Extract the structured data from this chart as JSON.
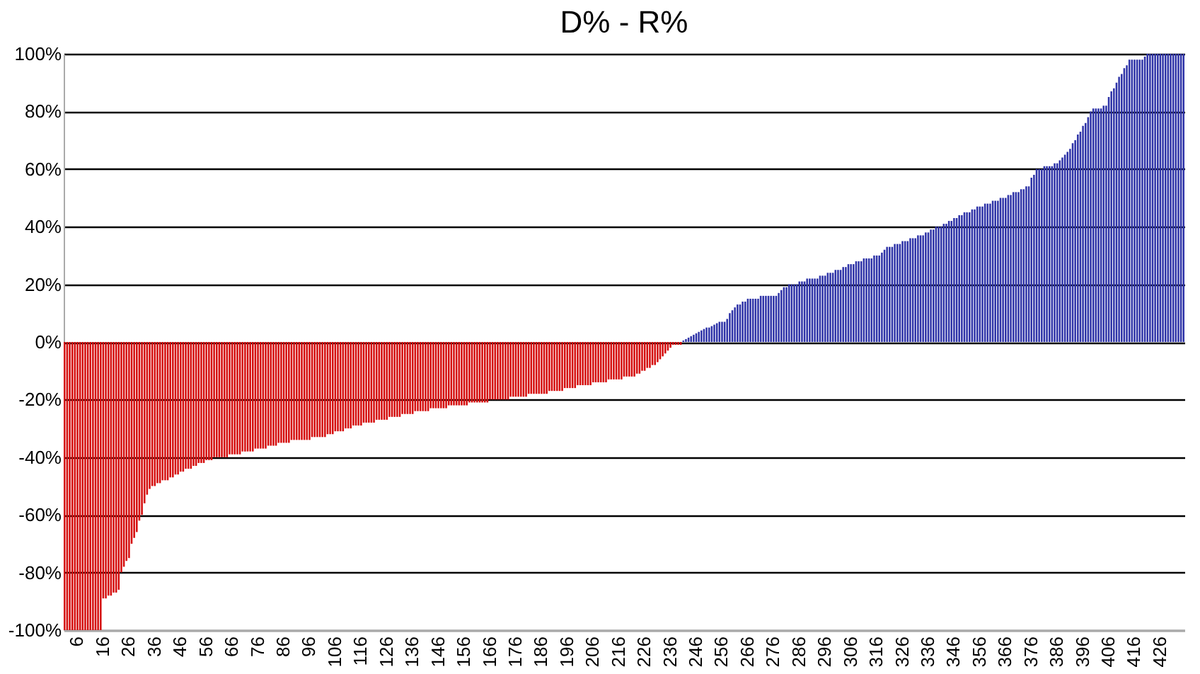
{
  "chart_data": {
    "type": "bar",
    "title": "D% - R%",
    "categories": [
      null,
      null,
      null,
      null,
      null,
      "6",
      null,
      null,
      null,
      null,
      null,
      null,
      null,
      null,
      null,
      "16",
      null,
      null,
      null,
      null,
      null,
      null,
      null,
      null,
      null,
      "26",
      null,
      null,
      null,
      null,
      null,
      null,
      null,
      null,
      null,
      "36",
      null,
      null,
      null,
      null,
      null,
      null,
      null,
      null,
      null,
      "46",
      null,
      null,
      null,
      null,
      null,
      null,
      null,
      null,
      null,
      "56",
      null,
      null,
      null,
      null,
      null,
      null,
      null,
      null,
      null,
      "66",
      null,
      null,
      null,
      null,
      null,
      null,
      null,
      null,
      null,
      "76",
      null,
      null,
      null,
      null,
      null,
      null,
      null,
      null,
      null,
      "86",
      null,
      null,
      null,
      null,
      null,
      null,
      null,
      null,
      null,
      "96",
      null,
      null,
      null,
      null,
      null,
      null,
      null,
      null,
      null,
      "106",
      null,
      null,
      null,
      null,
      null,
      null,
      null,
      null,
      null,
      "116",
      null,
      null,
      null,
      null,
      null,
      null,
      null,
      null,
      null,
      "126",
      null,
      null,
      null,
      null,
      null,
      null,
      null,
      null,
      null,
      "136",
      null,
      null,
      null,
      null,
      null,
      null,
      null,
      null,
      null,
      "146",
      null,
      null,
      null,
      null,
      null,
      null,
      null,
      null,
      null,
      "156",
      null,
      null,
      null,
      null,
      null,
      null,
      null,
      null,
      null,
      "166",
      null,
      null,
      null,
      null,
      null,
      null,
      null,
      null,
      null,
      "176",
      null,
      null,
      null,
      null,
      null,
      null,
      null,
      null,
      null,
      "186",
      null,
      null,
      null,
      null,
      null,
      null,
      null,
      null,
      null,
      "196",
      null,
      null,
      null,
      null,
      null,
      null,
      null,
      null,
      null,
      "206",
      null,
      null,
      null,
      null,
      null,
      null,
      null,
      null,
      null,
      "216",
      null,
      null,
      null,
      null,
      null,
      null,
      null,
      null,
      null,
      "226",
      null,
      null,
      null,
      null,
      null,
      null,
      null,
      null,
      null,
      "236",
      null,
      null,
      null,
      null,
      null,
      null,
      null,
      null,
      null,
      "246",
      null,
      null,
      null,
      null,
      null,
      null,
      null,
      null,
      null,
      "256",
      null,
      null,
      null,
      null,
      null,
      null,
      null,
      null,
      null,
      "266",
      null,
      null,
      null,
      null,
      null,
      null,
      null,
      null,
      null,
      "276",
      null,
      null,
      null,
      null,
      null,
      null,
      null,
      null,
      null,
      "286",
      null,
      null,
      null,
      null,
      null,
      null,
      null,
      null,
      null,
      "296",
      null,
      null,
      null,
      null,
      null,
      null,
      null,
      null,
      null,
      "306",
      null,
      null,
      null,
      null,
      null,
      null,
      null,
      null,
      null,
      "316",
      null,
      null,
      null,
      null,
      null,
      null,
      null,
      null,
      null,
      "326",
      null,
      null,
      null,
      null,
      null,
      null,
      null,
      null,
      null,
      "336",
      null,
      null,
      null,
      null,
      null,
      null,
      null,
      null,
      null,
      "346",
      null,
      null,
      null,
      null,
      null,
      null,
      null,
      null,
      null,
      "356",
      null,
      null,
      null,
      null,
      null,
      null,
      null,
      null,
      null,
      "366",
      null,
      null,
      null,
      null,
      null,
      null,
      null,
      null,
      null,
      "376",
      null,
      null,
      null,
      null,
      null,
      null,
      null,
      null,
      null,
      "386",
      null,
      null,
      null,
      null,
      null,
      null,
      null,
      null,
      null,
      "396",
      null,
      null,
      null,
      null,
      null,
      null,
      null,
      null,
      null,
      "406",
      null,
      null,
      null,
      null,
      null,
      null,
      null,
      null,
      null,
      "416",
      null,
      null,
      null,
      null,
      null,
      null,
      null,
      null,
      null,
      "426",
      null,
      null,
      null,
      null,
      null,
      null,
      null,
      null,
      null
    ],
    "series": [
      {
        "color": "#d50d0d",
        "values": [
          -100,
          -100,
          -100,
          -100,
          -100,
          -100,
          -100,
          -100,
          -100,
          -100,
          -100,
          -100,
          -100,
          -100,
          -100,
          -89,
          -89,
          -88,
          -88,
          -87,
          -87,
          -86,
          -80,
          -78,
          -76,
          -75,
          -70,
          -68,
          -66,
          -62,
          -60,
          -56,
          -53,
          -51,
          -50,
          -50,
          -49,
          -49,
          -48,
          -48,
          -48,
          -47,
          -47,
          -46,
          -46,
          -45,
          -45,
          -44,
          -44,
          -44,
          -43,
          -43,
          -42,
          -42,
          -42,
          -41,
          -41,
          -41,
          -40,
          -40,
          -40,
          -40,
          -40,
          -40,
          -39,
          -39,
          -39,
          -39,
          -39,
          -38,
          -38,
          -38,
          -38,
          -38,
          -37,
          -37,
          -37,
          -37,
          -37,
          -36,
          -36,
          -36,
          -36,
          -35,
          -35,
          -35,
          -35,
          -35,
          -34,
          -34,
          -34,
          -34,
          -34,
          -34,
          -34,
          -34,
          -33,
          -33,
          -33,
          -33,
          -33,
          -33,
          -32,
          -32,
          -32,
          -31,
          -31,
          -31,
          -31,
          -30,
          -30,
          -30,
          -29,
          -29,
          -29,
          -29,
          -28,
          -28,
          -28,
          -28,
          -28,
          -27,
          -27,
          -27,
          -27,
          -27,
          -26,
          -26,
          -26,
          -26,
          -26,
          -25,
          -25,
          -25,
          -25,
          -25,
          -24,
          -24,
          -24,
          -24,
          -24,
          -24,
          -23,
          -23,
          -23,
          -23,
          -23,
          -23,
          -23,
          -22,
          -22,
          -22,
          -22,
          -22,
          -22,
          -22,
          -22,
          -21,
          -21,
          -21,
          -21,
          -21,
          -21,
          -21,
          -21,
          -20,
          -20,
          -20,
          -20,
          -20,
          -20,
          -20,
          -20,
          -19,
          -19,
          -19,
          -19,
          -19,
          -19,
          -19,
          -18,
          -18,
          -18,
          -18,
          -18,
          -18,
          -18,
          -18,
          -17,
          -17,
          -17,
          -17,
          -17,
          -17,
          -16,
          -16,
          -16,
          -16,
          -16,
          -15,
          -15,
          -15,
          -15,
          -15,
          -15,
          -14,
          -14,
          -14,
          -14,
          -14,
          -14,
          -13,
          -13,
          -13,
          -13,
          -13,
          -13,
          -12,
          -12,
          -12,
          -12,
          -12,
          -11,
          -11,
          -10,
          -10,
          -9,
          -9,
          -8,
          -8,
          -7,
          -6,
          -5,
          -4,
          -3,
          -2,
          -1,
          -1,
          -1,
          -1,
          null,
          null,
          null,
          null,
          null,
          null,
          null,
          null,
          null,
          null,
          null,
          null,
          null,
          null,
          null,
          null,
          null,
          null,
          null,
          null,
          null,
          null,
          null,
          null,
          null,
          null,
          null,
          null,
          null,
          null,
          null,
          null,
          null,
          null,
          null,
          null,
          null,
          null,
          null,
          null,
          null,
          null,
          null,
          null,
          null,
          null,
          null,
          null,
          null,
          null,
          null,
          null,
          null,
          null,
          null,
          null,
          null,
          null,
          null,
          null,
          null,
          null,
          null,
          null,
          null,
          null,
          null,
          null,
          null,
          null,
          null,
          null,
          null,
          null,
          null,
          null,
          null,
          null,
          null,
          null,
          null,
          null,
          null,
          null,
          null,
          null,
          null,
          null,
          null,
          null,
          null,
          null,
          null,
          null,
          null,
          null,
          null,
          null,
          null,
          null,
          null,
          null,
          null,
          null,
          null,
          null,
          null,
          null,
          null,
          null,
          null,
          null,
          null,
          null,
          null,
          null,
          null,
          null,
          null,
          null,
          null,
          null,
          null,
          null,
          null,
          null,
          null,
          null,
          null,
          null,
          null,
          null,
          null,
          null,
          null,
          null,
          null,
          null,
          null,
          null,
          null,
          null,
          null,
          null,
          null,
          null,
          null,
          null,
          null,
          null,
          null,
          null,
          null,
          null,
          null,
          null,
          null,
          null,
          null,
          null,
          null,
          null,
          null,
          null,
          null,
          null,
          null,
          null,
          null,
          null,
          null,
          null,
          null,
          null,
          null,
          null,
          null,
          null,
          null,
          null,
          null,
          null,
          null,
          null,
          null,
          null,
          null,
          null,
          null,
          null,
          null,
          null,
          null,
          null,
          null
        ]
      },
      {
        "color": "#2f34a8",
        "values": [
          null,
          null,
          null,
          null,
          null,
          null,
          null,
          null,
          null,
          null,
          null,
          null,
          null,
          null,
          null,
          null,
          null,
          null,
          null,
          null,
          null,
          null,
          null,
          null,
          null,
          null,
          null,
          null,
          null,
          null,
          null,
          null,
          null,
          null,
          null,
          null,
          null,
          null,
          null,
          null,
          null,
          null,
          null,
          null,
          null,
          null,
          null,
          null,
          null,
          null,
          null,
          null,
          null,
          null,
          null,
          null,
          null,
          null,
          null,
          null,
          null,
          null,
          null,
          null,
          null,
          null,
          null,
          null,
          null,
          null,
          null,
          null,
          null,
          null,
          null,
          null,
          null,
          null,
          null,
          null,
          null,
          null,
          null,
          null,
          null,
          null,
          null,
          null,
          null,
          null,
          null,
          null,
          null,
          null,
          null,
          null,
          null,
          null,
          null,
          null,
          null,
          null,
          null,
          null,
          null,
          null,
          null,
          null,
          null,
          null,
          null,
          null,
          null,
          null,
          null,
          null,
          null,
          null,
          null,
          null,
          null,
          null,
          null,
          null,
          null,
          null,
          null,
          null,
          null,
          null,
          null,
          null,
          null,
          null,
          null,
          null,
          null,
          null,
          null,
          null,
          null,
          null,
          null,
          null,
          null,
          null,
          null,
          null,
          null,
          null,
          null,
          null,
          null,
          null,
          null,
          null,
          null,
          null,
          null,
          null,
          null,
          null,
          null,
          null,
          null,
          null,
          null,
          null,
          null,
          null,
          null,
          null,
          null,
          null,
          null,
          null,
          null,
          null,
          null,
          null,
          null,
          null,
          null,
          null,
          null,
          null,
          null,
          null,
          null,
          null,
          null,
          null,
          null,
          null,
          null,
          null,
          null,
          null,
          null,
          null,
          null,
          null,
          null,
          null,
          null,
          null,
          null,
          null,
          null,
          null,
          null,
          null,
          null,
          null,
          null,
          null,
          null,
          null,
          null,
          null,
          null,
          null,
          null,
          null,
          null,
          null,
          null,
          null,
          null,
          null,
          null,
          null,
          null,
          null,
          null,
          null,
          null,
          null,
          null,
          null,
          0.5,
          1,
          1.5,
          2,
          2.5,
          3,
          3.5,
          4,
          4.5,
          5,
          5,
          5.5,
          6,
          6.5,
          7,
          7,
          7,
          8,
          10,
          11,
          12,
          13,
          13,
          14,
          14,
          15,
          15,
          15,
          15,
          15,
          16,
          16,
          16,
          16,
          16,
          16,
          16,
          17,
          18,
          19,
          19,
          20,
          20,
          20,
          20,
          21,
          21,
          21,
          22,
          22,
          22,
          22,
          22,
          23,
          23,
          23,
          24,
          24,
          24,
          25,
          25,
          25,
          26,
          26,
          27,
          27,
          27,
          28,
          28,
          28,
          29,
          29,
          29,
          29,
          30,
          30,
          30,
          31,
          32,
          33,
          33,
          33,
          34,
          34,
          34,
          35,
          35,
          35,
          36,
          36,
          36,
          37,
          37,
          37,
          38,
          38,
          39,
          39,
          40,
          40,
          40,
          41,
          41,
          42,
          42,
          43,
          43,
          44,
          44,
          45,
          45,
          45,
          46,
          46,
          47,
          47,
          47,
          48,
          48,
          48,
          49,
          49,
          49,
          50,
          50,
          50,
          51,
          51,
          52,
          52,
          52,
          53,
          53,
          54,
          54,
          57,
          58,
          60,
          60,
          60,
          61,
          61,
          61,
          61,
          62,
          62,
          63,
          64,
          65,
          66,
          67,
          69,
          70,
          72,
          73,
          75,
          76,
          78,
          80,
          81,
          81,
          81,
          81,
          82,
          82,
          85,
          87,
          88,
          90,
          92,
          93,
          95,
          96,
          98,
          98,
          98,
          98,
          98,
          98,
          99,
          100,
          100,
          100,
          100,
          100,
          100,
          100,
          100,
          100,
          100,
          100,
          100,
          100,
          100,
          100
        ]
      }
    ],
    "ylim": [
      -100,
      100
    ],
    "yticks": [
      {
        "value": -100,
        "label": "-100%"
      },
      {
        "value": -80,
        "label": "-80%"
      },
      {
        "value": -60,
        "label": "-60%"
      },
      {
        "value": -40,
        "label": "-40%"
      },
      {
        "value": -20,
        "label": "-20%"
      },
      {
        "value": 0,
        "label": "0%"
      },
      {
        "value": 20,
        "label": "20%"
      },
      {
        "value": 40,
        "label": "40%"
      },
      {
        "value": 60,
        "label": "60%"
      },
      {
        "value": 80,
        "label": "80%"
      },
      {
        "value": 100,
        "label": "100%"
      }
    ],
    "grid": "y"
  }
}
